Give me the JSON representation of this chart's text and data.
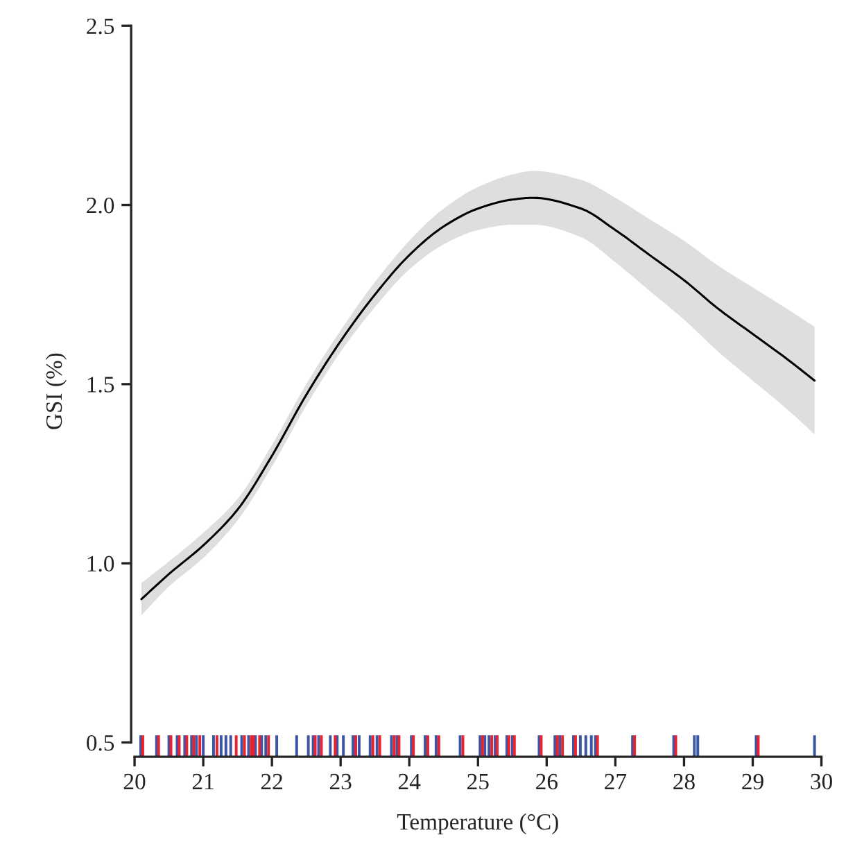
{
  "chart_data": {
    "type": "line",
    "xlabel": "Temperature (°C)",
    "ylabel": "GSI (%)",
    "xlim": [
      19.95,
      30.05
    ],
    "ylim": [
      0.46,
      2.5
    ],
    "xticks": [
      20,
      21,
      22,
      23,
      24,
      25,
      26,
      27,
      28,
      29,
      30
    ],
    "yticks": [
      0.5,
      {
        "value": 1,
        "label": "1.0"
      },
      1.5,
      {
        "value": 2,
        "label": "2.0"
      },
      2.5
    ],
    "grid": false,
    "legend": false,
    "series": [
      {
        "color": "#000000",
        "x": [
          20.1,
          20.5,
          21,
          21.5,
          22,
          22.5,
          23,
          23.5,
          24,
          24.5,
          25,
          25.5,
          25.8,
          26.5,
          27,
          27.5,
          28,
          28.5,
          29,
          29.5,
          29.9
        ],
        "values": [
          0.9,
          0.97,
          1.05,
          1.15,
          1.3,
          1.47,
          1.62,
          1.75,
          1.86,
          1.94,
          1.99,
          2.015,
          2.02,
          1.99,
          1.93,
          1.86,
          1.79,
          1.71,
          1.64,
          1.57,
          1.51
        ],
        "lower": [
          0.855,
          0.935,
          1.015,
          1.12,
          1.27,
          1.44,
          1.59,
          1.715,
          1.82,
          1.89,
          1.93,
          1.945,
          1.945,
          1.91,
          1.84,
          1.76,
          1.68,
          1.59,
          1.51,
          1.43,
          1.36
        ],
        "upper": [
          0.945,
          1.005,
          1.085,
          1.18,
          1.33,
          1.5,
          1.65,
          1.785,
          1.9,
          1.99,
          2.05,
          2.085,
          2.095,
          2.07,
          2.02,
          1.96,
          1.9,
          1.83,
          1.77,
          1.71,
          1.66
        ]
      },
      {
        "type": "bar",
        "color": "#3a56a6",
        "x": [
          20.09,
          20.32,
          20.5,
          20.62,
          20.73,
          20.83,
          20.9,
          21.0,
          21.15,
          21.26,
          21.33,
          21.4,
          21.56,
          21.66,
          21.76,
          21.85,
          21.91,
          22.07,
          22.36,
          22.53,
          22.6,
          22.68,
          22.85,
          22.95,
          23.04,
          23.18,
          23.27,
          23.43,
          23.53,
          23.74,
          23.82,
          24.03,
          24.23,
          24.39,
          24.74,
          25.03,
          25.1,
          25.16,
          25.25,
          25.42,
          25.5,
          25.89,
          26.12,
          26.19,
          26.39,
          26.49,
          26.57,
          26.65,
          26.71,
          27.25,
          27.85,
          28.15,
          28.2,
          29.05,
          29.9
        ],
        "base": [
          0.46,
          0.46,
          0.46,
          0.46,
          0.46,
          0.46,
          0.46,
          0.46,
          0.46,
          0.46,
          0.46,
          0.46,
          0.46,
          0.46,
          0.46,
          0.46,
          0.46,
          0.46,
          0.46,
          0.46,
          0.46,
          0.46,
          0.46,
          0.46,
          0.46,
          0.46,
          0.46,
          0.46,
          0.46,
          0.46,
          0.46,
          0.46,
          0.46,
          0.46,
          0.46,
          0.46,
          0.46,
          0.46,
          0.46,
          0.46,
          0.46,
          0.46,
          0.46,
          0.46,
          0.46,
          0.46,
          0.46,
          0.46,
          0.46,
          0.46,
          0.46,
          0.46,
          0.46,
          0.46,
          0.46
        ],
        "values": [
          0.06,
          0.06,
          0.06,
          0.06,
          0.06,
          0.06,
          0.06,
          0.06,
          0.06,
          0.06,
          0.06,
          0.06,
          0.06,
          0.06,
          0.06,
          0.06,
          0.06,
          0.06,
          0.06,
          0.06,
          0.06,
          0.06,
          0.06,
          0.06,
          0.06,
          0.06,
          0.06,
          0.06,
          0.06,
          0.06,
          0.06,
          0.06,
          0.06,
          0.06,
          0.06,
          0.06,
          0.06,
          0.06,
          0.06,
          0.06,
          0.06,
          0.06,
          0.06,
          0.06,
          0.06,
          0.06,
          0.06,
          0.06,
          0.06,
          0.06,
          0.06,
          0.06,
          0.06,
          0.06,
          0.06
        ]
      },
      {
        "type": "bar",
        "color": "#e8222e",
        "x": [
          20.12,
          20.35,
          20.53,
          20.65,
          20.76,
          20.86,
          20.95,
          21.2,
          21.48,
          21.6,
          21.7,
          21.73,
          21.82,
          21.95,
          22.63,
          22.72,
          22.92,
          23.22,
          23.47,
          23.57,
          23.78,
          23.85,
          24.06,
          24.27,
          24.43,
          24.78,
          25.065,
          25.2,
          25.28,
          25.45,
          25.53,
          25.92,
          26.155,
          26.23,
          26.42,
          26.74,
          27.28,
          27.88,
          29.08
        ],
        "base": [
          0.46,
          0.46,
          0.46,
          0.46,
          0.46,
          0.46,
          0.46,
          0.46,
          0.46,
          0.46,
          0.46,
          0.46,
          0.46,
          0.46,
          0.46,
          0.46,
          0.46,
          0.46,
          0.46,
          0.46,
          0.46,
          0.46,
          0.46,
          0.46,
          0.46,
          0.46,
          0.46,
          0.46,
          0.46,
          0.46,
          0.46,
          0.46,
          0.46,
          0.46,
          0.46,
          0.46,
          0.46,
          0.46,
          0.46
        ],
        "values": [
          0.06,
          0.06,
          0.06,
          0.06,
          0.06,
          0.06,
          0.06,
          0.06,
          0.06,
          0.06,
          0.06,
          0.06,
          0.06,
          0.06,
          0.06,
          0.06,
          0.06,
          0.06,
          0.06,
          0.06,
          0.06,
          0.06,
          0.06,
          0.06,
          0.06,
          0.06,
          0.06,
          0.06,
          0.06,
          0.06,
          0.06,
          0.06,
          0.06,
          0.06,
          0.06,
          0.06,
          0.06,
          0.06,
          0.06
        ]
      }
    ]
  }
}
